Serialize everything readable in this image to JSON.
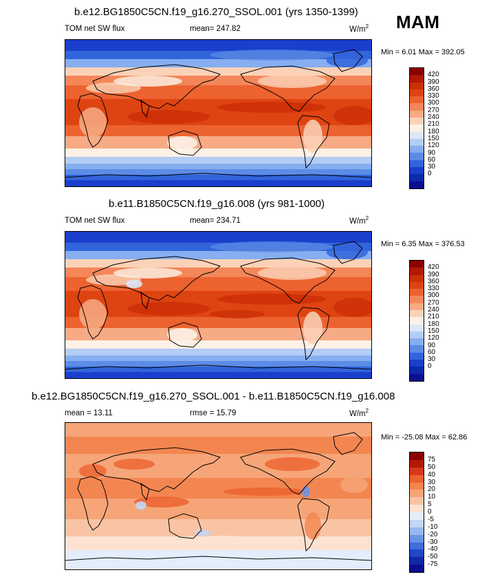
{
  "season": "MAM",
  "panels": [
    {
      "title": "b.e12.BG1850C5CN.f19_g16.270_SSOL.001 (yrs 1350-1399)",
      "left_label": "TOM net SW flux",
      "center_label": "mean= 247.82",
      "units": "W/m",
      "units_sup": "2",
      "minmax": "Min =   6.01 Max = 392.05",
      "colorbar": {
        "labels": [
          "420",
          "390",
          "360",
          "330",
          "300",
          "270",
          "240",
          "210",
          "180",
          "150",
          "120",
          "90",
          "60",
          "30",
          "0"
        ],
        "colors": [
          "#8b0000",
          "#b01a04",
          "#cc2e08",
          "#de4412",
          "#ec6330",
          "#f4875a",
          "#f7ab85",
          "#fbd2b8",
          "#fdf1e6",
          "#dbe7fa",
          "#b3cdf5",
          "#86aef0",
          "#5c8ce6",
          "#3264db",
          "#1b3fcc",
          "#0d2aa8",
          "#0a0f8c"
        ]
      },
      "map_style": "absolute"
    },
    {
      "title": "b.e11.B1850C5CN.f19_g16.008 (yrs 981-1000)",
      "left_label": "TOM net SW flux",
      "center_label": "mean= 234.71",
      "units": "W/m",
      "units_sup": "2",
      "minmax": "Min =   6.35 Max = 376.53",
      "colorbar": {
        "labels": [
          "420",
          "390",
          "360",
          "330",
          "300",
          "270",
          "240",
          "210",
          "180",
          "150",
          "120",
          "90",
          "60",
          "30",
          "0"
        ],
        "colors": [
          "#8b0000",
          "#b01a04",
          "#cc2e08",
          "#de4412",
          "#ec6330",
          "#f4875a",
          "#f7ab85",
          "#fbd2b8",
          "#fdf1e6",
          "#dbe7fa",
          "#b3cdf5",
          "#86aef0",
          "#5c8ce6",
          "#3264db",
          "#1b3fcc",
          "#0d2aa8",
          "#0a0f8c"
        ]
      },
      "map_style": "absolute"
    },
    {
      "title": "b.e12.BG1850C5CN.f19_g16.270_SSOL.001 - b.e11.B1850C5CN.f19_g16.008",
      "left_label": "mean =  13.11",
      "center_label": "rmse =  15.79",
      "units": "W/m",
      "units_sup": "2",
      "minmax": "Min = -25.08 Max =  62.86",
      "colorbar": {
        "labels": [
          "75",
          "50",
          "40",
          "30",
          "20",
          "10",
          "5",
          "0",
          "-5",
          "-10",
          "-20",
          "-30",
          "-40",
          "-50",
          "-75"
        ],
        "colors": [
          "#8b0000",
          "#b01a04",
          "#d8381a",
          "#ec6330",
          "#f38650",
          "#f6a578",
          "#f9c4a3",
          "#fde2d2",
          "#e3edfb",
          "#c3d6f5",
          "#97b8ef",
          "#6a95e6",
          "#3f6ddb",
          "#2246c8",
          "#1128a8",
          "#0a0f8c"
        ]
      },
      "map_style": "difference"
    }
  ],
  "chart_data": {
    "type": "heatmap",
    "season": "MAM",
    "variable": "TOM net SW flux",
    "units": "W/m2",
    "panels": [
      {
        "case": "b.e12.BG1850C5CN.f19_g16.270_SSOL.001 (yrs 1350-1399)",
        "mean": 247.82,
        "min": 6.01,
        "max": 392.05,
        "levels": [
          0,
          30,
          60,
          90,
          120,
          150,
          180,
          210,
          240,
          270,
          300,
          330,
          360,
          390,
          420
        ]
      },
      {
        "case": "b.e11.B1850C5CN.f19_g16.008 (yrs 981-1000)",
        "mean": 234.71,
        "min": 6.35,
        "max": 376.53,
        "levels": [
          0,
          30,
          60,
          90,
          120,
          150,
          180,
          210,
          240,
          270,
          300,
          330,
          360,
          390,
          420
        ]
      },
      {
        "case": "b.e12.BG1850C5CN.f19_g16.270_SSOL.001 - b.e11.B1850C5CN.f19_g16.008",
        "mean": 13.11,
        "rmse": 15.79,
        "min": -25.08,
        "max": 62.86,
        "levels": [
          -75,
          -50,
          -40,
          -30,
          -20,
          -10,
          -5,
          0,
          5,
          10,
          20,
          30,
          40,
          50,
          75
        ]
      }
    ]
  }
}
